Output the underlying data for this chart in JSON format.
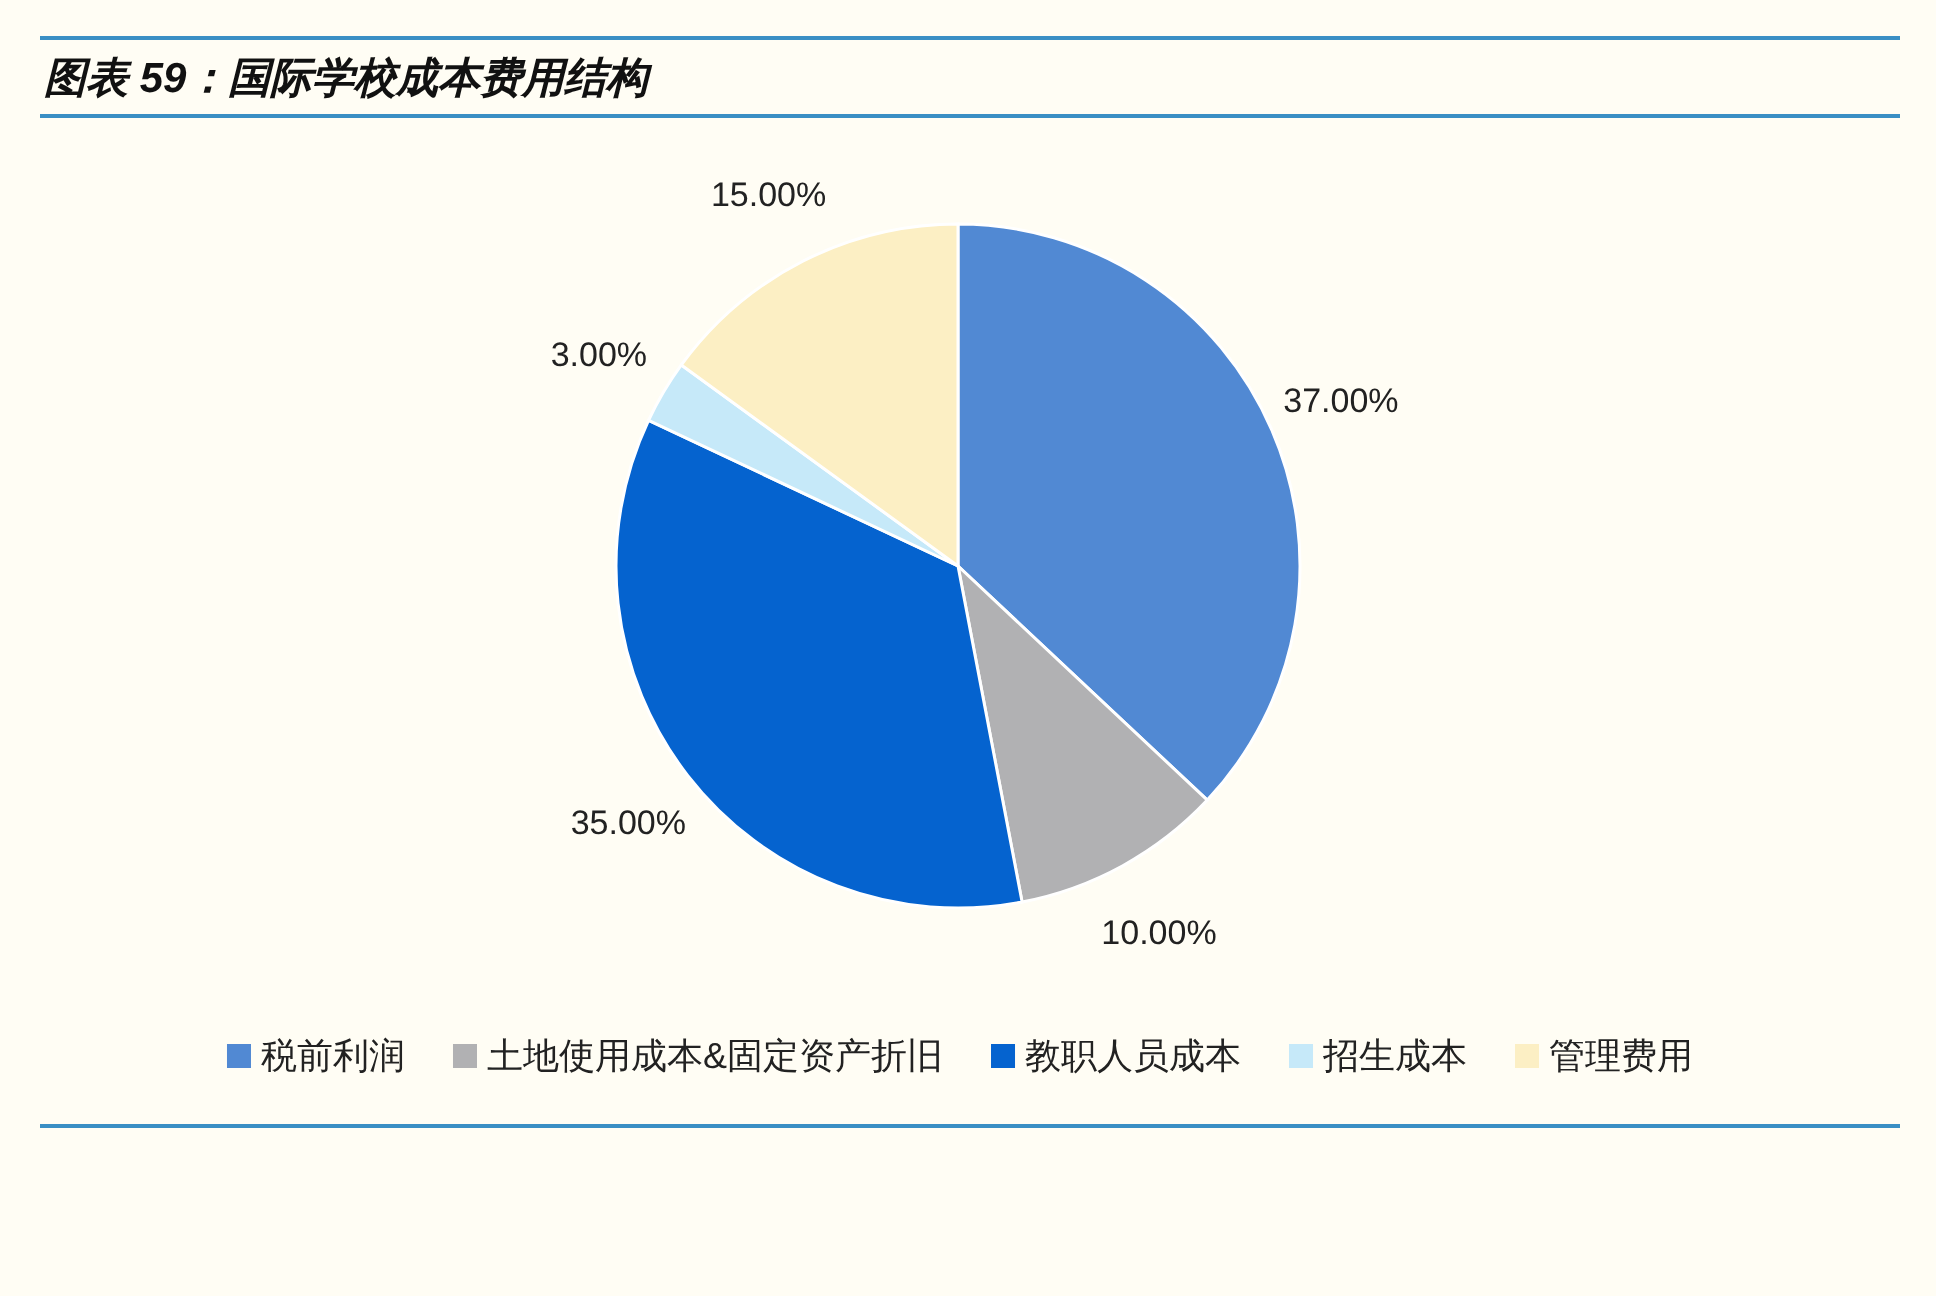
{
  "chart_data": {
    "type": "pie",
    "title": "图表 59：国际学校成本费用结构",
    "categories": [
      "税前利润",
      "土地使用成本&固定资产折旧",
      "教职人员成本",
      "招生成本",
      "管理费用"
    ],
    "values": [
      37,
      10,
      35,
      3,
      15
    ],
    "colors": [
      "#5189d3",
      "#b1b1b3",
      "#0563cf",
      "#c6e9f9",
      "#fcefc4"
    ],
    "value_labels": [
      "37.00%",
      "10.00%",
      "35.00%",
      "3.00%",
      "15.00%"
    ],
    "legend": "bottom"
  }
}
